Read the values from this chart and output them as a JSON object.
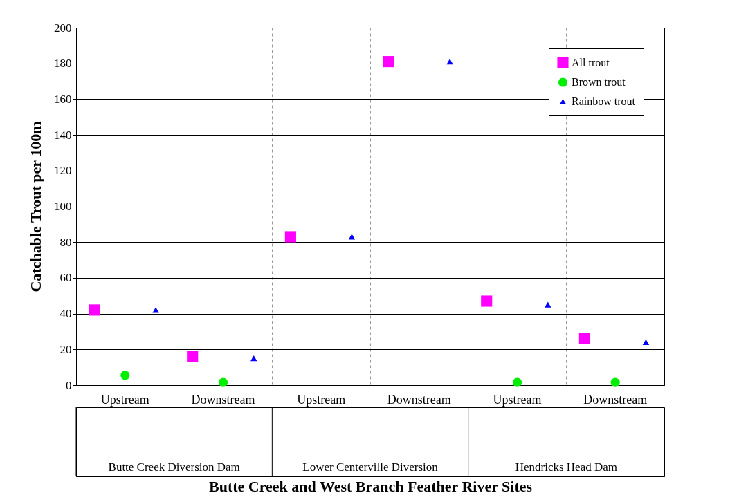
{
  "chart_data": {
    "type": "scatter",
    "xlabel": "Butte Creek and West Branch Feather River Sites",
    "ylabel": "Catchable Trout per 100m",
    "categories": [
      "Upstream",
      "Downstream",
      "Upstream",
      "Downstream",
      "Upstream",
      "Downstream"
    ],
    "annotations": [
      "Butte Creek Diversion Dam",
      "Lower Centerville Diversion",
      "Hendricks Head Dam"
    ],
    "series": [
      {
        "name": "All trout",
        "color": "#ff00ff",
        "marker": "square",
        "values": [
          42,
          16,
          83,
          181,
          47,
          26
        ]
      },
      {
        "name": "Brown trout",
        "color": "#00ee00",
        "marker": "circle",
        "values": [
          5.5,
          1.5,
          null,
          null,
          1.5,
          1.5
        ]
      },
      {
        "name": "Rainbow trout",
        "color": "#0000ff",
        "marker": "triangle",
        "values": [
          42,
          15,
          83,
          181,
          45,
          24
        ]
      }
    ],
    "ylim": [
      0,
      200
    ],
    "yticks": [
      0,
      20,
      40,
      60,
      80,
      100,
      120,
      140,
      160,
      180,
      200
    ],
    "grid": "y",
    "legend": "top right"
  }
}
